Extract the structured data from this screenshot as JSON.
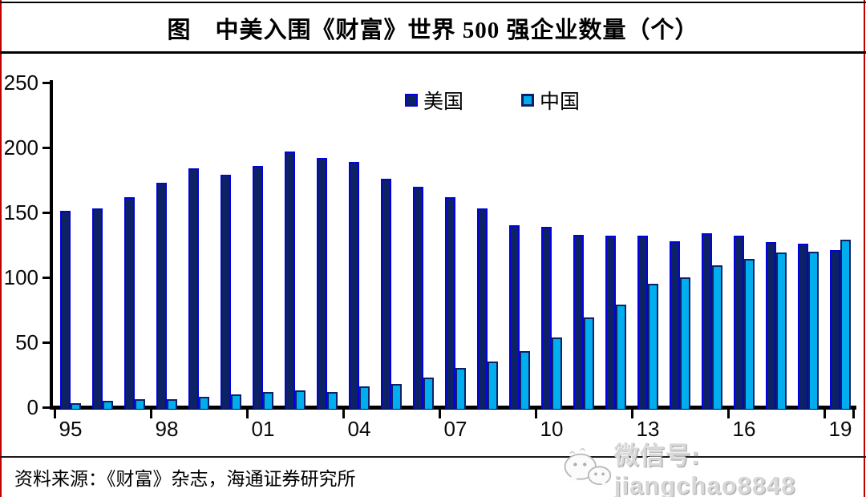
{
  "title": "图　中美入围《财富》世界 500 强企业数量（个）",
  "source": "资料来源：《财富》杂志，海通证券研究所",
  "watermark": {
    "icon": "wechat-icon",
    "text": "微信号: jiangchao8848"
  },
  "colors": {
    "us_fill": "#0c2264",
    "us_border": "#0202dd",
    "china_fill": "#00aeef",
    "china_border": "#0c2264",
    "axis": "#000000",
    "page_edge_rule": "#c00000",
    "watermark_gray": "#d8d8d8"
  },
  "chart_data": {
    "type": "bar",
    "title": "图　中美入围《财富》世界 500 强企业数量（个）",
    "xlabel": "",
    "ylabel": "",
    "ylim": [
      0,
      250
    ],
    "yticks": [
      0,
      50,
      100,
      150,
      200,
      250
    ],
    "grid": false,
    "legend_position": "top-center",
    "categories": [
      "95",
      "96",
      "97",
      "98",
      "99",
      "00",
      "01",
      "02",
      "03",
      "04",
      "05",
      "06",
      "07",
      "08",
      "09",
      "10",
      "11",
      "12",
      "13",
      "14",
      "15",
      "16",
      "17",
      "18",
      "19"
    ],
    "x_tick_labels": [
      "95",
      "98",
      "01",
      "04",
      "07",
      "10",
      "13",
      "16",
      "19"
    ],
    "series": [
      {
        "name": "美国",
        "values": [
          151,
          153,
          162,
          173,
          184,
          179,
          186,
          197,
          192,
          189,
          176,
          170,
          162,
          153,
          140,
          139,
          133,
          132,
          132,
          128,
          134,
          132,
          127,
          126,
          121
        ]
      },
      {
        "name": "中国",
        "values": [
          3,
          5,
          6,
          6,
          8,
          10,
          12,
          13,
          12,
          16,
          18,
          23,
          30,
          35,
          43,
          54,
          69,
          79,
          95,
          100,
          109,
          114,
          119,
          120,
          129
        ]
      }
    ]
  }
}
